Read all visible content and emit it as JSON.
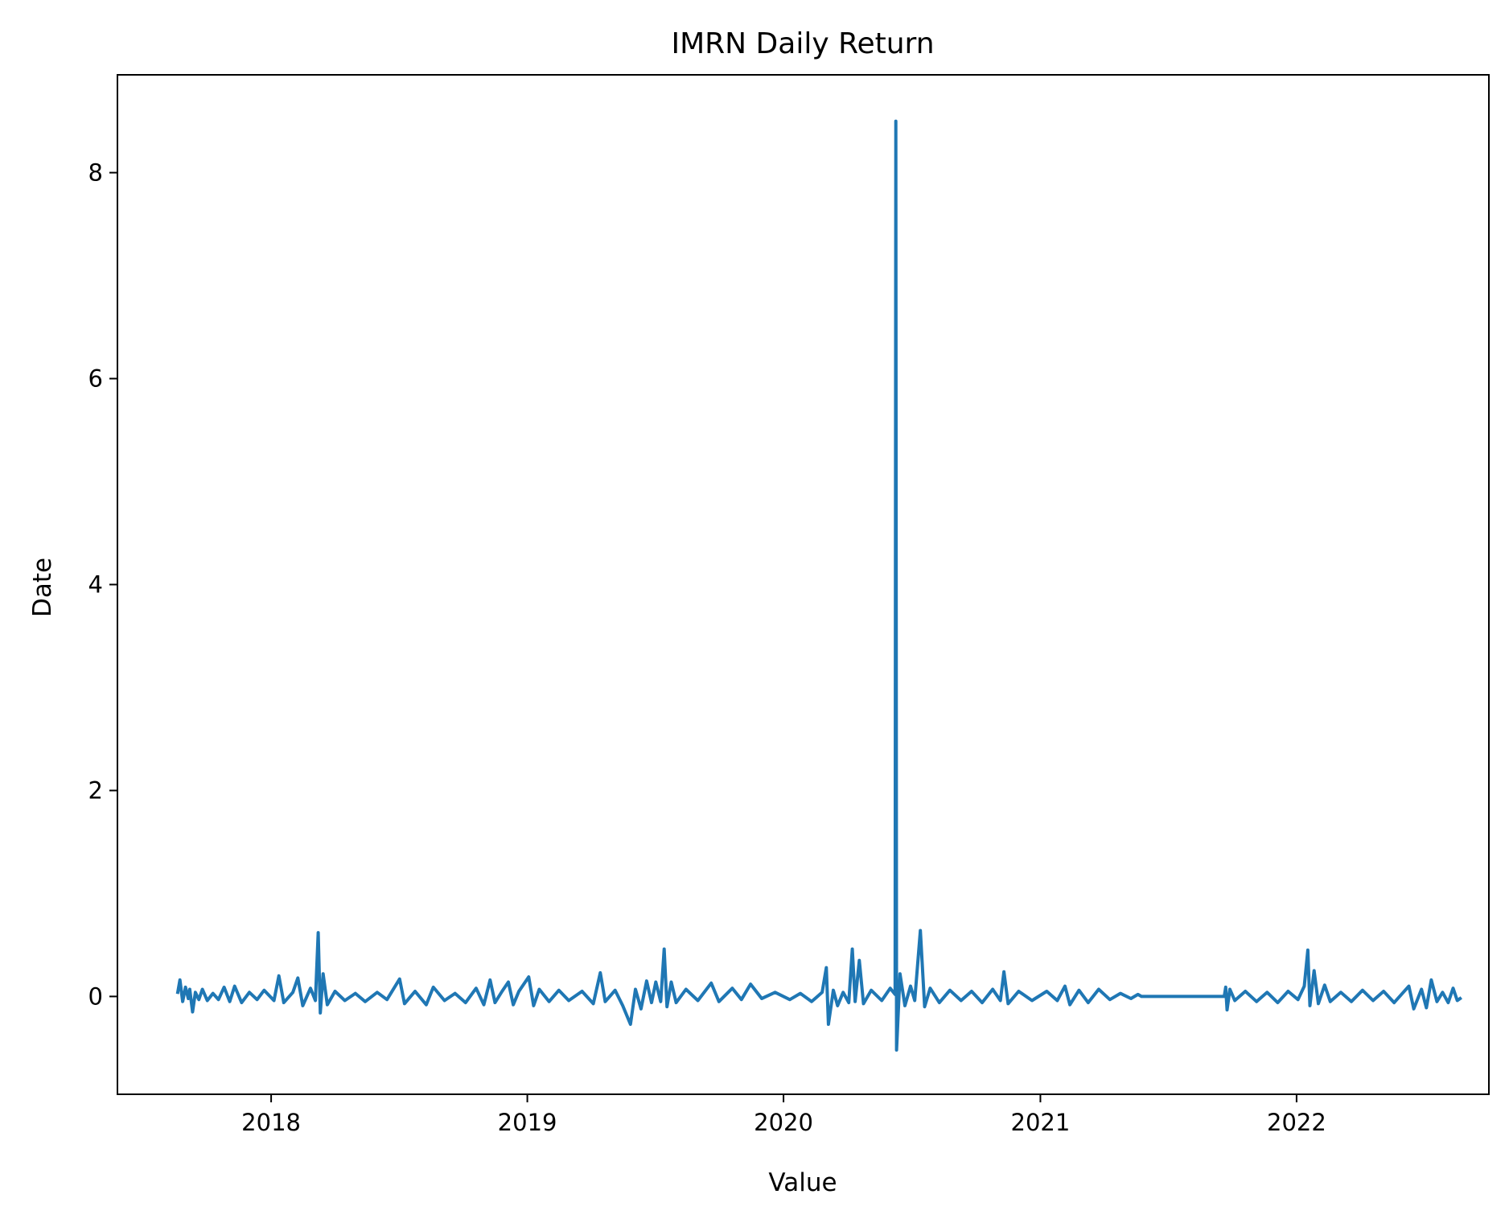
{
  "chart_data": {
    "type": "line",
    "title": "IMRN Daily Return",
    "xlabel": "Value",
    "ylabel": "Date",
    "x_ticks": [
      "2018",
      "2019",
      "2020",
      "2021",
      "2022"
    ],
    "y_ticks": [
      "0",
      "2",
      "4",
      "6",
      "8"
    ],
    "xlim": [
      "2017-05-27",
      "2022-10-02"
    ],
    "ylim": [
      -0.95,
      8.95
    ],
    "grid": false,
    "series": [
      {
        "color": "#1f77b4",
        "points": [
          [
            "2017-08-21",
            0.04
          ],
          [
            "2017-08-24",
            0.16
          ],
          [
            "2017-08-28",
            -0.05
          ],
          [
            "2017-09-01",
            0.09
          ],
          [
            "2017-09-05",
            -0.02
          ],
          [
            "2017-09-07",
            0.07
          ],
          [
            "2017-09-11",
            -0.15
          ],
          [
            "2017-09-15",
            0.04
          ],
          [
            "2017-09-20",
            -0.03
          ],
          [
            "2017-09-25",
            0.07
          ],
          [
            "2017-10-02",
            -0.04
          ],
          [
            "2017-10-10",
            0.03
          ],
          [
            "2017-10-18",
            -0.03
          ],
          [
            "2017-10-26",
            0.09
          ],
          [
            "2017-11-03",
            -0.05
          ],
          [
            "2017-11-10",
            0.1
          ],
          [
            "2017-11-20",
            -0.06
          ],
          [
            "2017-12-01",
            0.04
          ],
          [
            "2017-12-12",
            -0.03
          ],
          [
            "2017-12-22",
            0.06
          ],
          [
            "2018-01-05",
            -0.04
          ],
          [
            "2018-01-12",
            0.2
          ],
          [
            "2018-01-19",
            -0.06
          ],
          [
            "2018-02-01",
            0.04
          ],
          [
            "2018-02-08",
            0.18
          ],
          [
            "2018-02-15",
            -0.09
          ],
          [
            "2018-02-26",
            0.08
          ],
          [
            "2018-03-05",
            -0.04
          ],
          [
            "2018-03-09",
            0.62
          ],
          [
            "2018-03-12",
            -0.16
          ],
          [
            "2018-03-16",
            0.22
          ],
          [
            "2018-03-22",
            -0.08
          ],
          [
            "2018-04-02",
            0.05
          ],
          [
            "2018-04-16",
            -0.04
          ],
          [
            "2018-05-01",
            0.03
          ],
          [
            "2018-05-15",
            -0.05
          ],
          [
            "2018-06-01",
            0.04
          ],
          [
            "2018-06-15",
            -0.03
          ],
          [
            "2018-07-03",
            0.17
          ],
          [
            "2018-07-10",
            -0.07
          ],
          [
            "2018-07-25",
            0.05
          ],
          [
            "2018-08-10",
            -0.08
          ],
          [
            "2018-08-20",
            0.09
          ],
          [
            "2018-09-05",
            -0.04
          ],
          [
            "2018-09-20",
            0.03
          ],
          [
            "2018-10-05",
            -0.06
          ],
          [
            "2018-10-20",
            0.08
          ],
          [
            "2018-10-31",
            -0.08
          ],
          [
            "2018-11-09",
            0.16
          ],
          [
            "2018-11-16",
            -0.06
          ],
          [
            "2018-11-26",
            0.05
          ],
          [
            "2018-12-05",
            0.14
          ],
          [
            "2018-12-12",
            -0.08
          ],
          [
            "2018-12-20",
            0.05
          ],
          [
            "2019-01-03",
            0.19
          ],
          [
            "2019-01-10",
            -0.09
          ],
          [
            "2019-01-18",
            0.07
          ],
          [
            "2019-02-01",
            -0.05
          ],
          [
            "2019-02-15",
            0.06
          ],
          [
            "2019-03-01",
            -0.04
          ],
          [
            "2019-03-20",
            0.05
          ],
          [
            "2019-04-05",
            -0.07
          ],
          [
            "2019-04-15",
            0.23
          ],
          [
            "2019-04-22",
            -0.05
          ],
          [
            "2019-05-06",
            0.06
          ],
          [
            "2019-05-17",
            -0.09
          ],
          [
            "2019-05-28",
            -0.27
          ],
          [
            "2019-06-04",
            0.07
          ],
          [
            "2019-06-12",
            -0.12
          ],
          [
            "2019-06-20",
            0.15
          ],
          [
            "2019-06-27",
            -0.06
          ],
          [
            "2019-07-03",
            0.14
          ],
          [
            "2019-07-10",
            -0.05
          ],
          [
            "2019-07-15",
            0.46
          ],
          [
            "2019-07-19",
            -0.1
          ],
          [
            "2019-07-25",
            0.14
          ],
          [
            "2019-08-01",
            -0.06
          ],
          [
            "2019-08-15",
            0.07
          ],
          [
            "2019-09-01",
            -0.04
          ],
          [
            "2019-09-20",
            0.13
          ],
          [
            "2019-10-01",
            -0.05
          ],
          [
            "2019-10-20",
            0.08
          ],
          [
            "2019-11-02",
            -0.03
          ],
          [
            "2019-11-15",
            0.12
          ],
          [
            "2019-12-01",
            -0.02
          ],
          [
            "2019-12-20",
            0.04
          ],
          [
            "2020-01-10",
            -0.03
          ],
          [
            "2020-01-25",
            0.03
          ],
          [
            "2020-02-10",
            -0.05
          ],
          [
            "2020-02-25",
            0.04
          ],
          [
            "2020-03-02",
            0.28
          ],
          [
            "2020-03-05",
            -0.27
          ],
          [
            "2020-03-12",
            0.06
          ],
          [
            "2020-03-18",
            -0.09
          ],
          [
            "2020-03-26",
            0.04
          ],
          [
            "2020-04-03",
            -0.06
          ],
          [
            "2020-04-08",
            0.46
          ],
          [
            "2020-04-12",
            -0.05
          ],
          [
            "2020-04-18",
            0.35
          ],
          [
            "2020-04-24",
            -0.07
          ],
          [
            "2020-05-05",
            0.06
          ],
          [
            "2020-05-20",
            -0.04
          ],
          [
            "2020-06-01",
            0.08
          ],
          [
            "2020-06-08",
            0.02
          ],
          [
            "2020-06-09",
            8.5
          ],
          [
            "2020-06-10",
            -0.52
          ],
          [
            "2020-06-15",
            0.22
          ],
          [
            "2020-06-22",
            -0.09
          ],
          [
            "2020-06-30",
            0.1
          ],
          [
            "2020-07-06",
            -0.04
          ],
          [
            "2020-07-14",
            0.64
          ],
          [
            "2020-07-20",
            -0.1
          ],
          [
            "2020-07-28",
            0.08
          ],
          [
            "2020-08-10",
            -0.06
          ],
          [
            "2020-08-25",
            0.06
          ],
          [
            "2020-09-10",
            -0.04
          ],
          [
            "2020-09-25",
            0.05
          ],
          [
            "2020-10-10",
            -0.06
          ],
          [
            "2020-10-25",
            0.07
          ],
          [
            "2020-11-05",
            -0.04
          ],
          [
            "2020-11-10",
            0.24
          ],
          [
            "2020-11-16",
            -0.07
          ],
          [
            "2020-12-01",
            0.05
          ],
          [
            "2020-12-20",
            -0.04
          ],
          [
            "2021-01-10",
            0.05
          ],
          [
            "2021-01-25",
            -0.04
          ],
          [
            "2021-02-05",
            0.1
          ],
          [
            "2021-02-12",
            -0.08
          ],
          [
            "2021-02-25",
            0.06
          ],
          [
            "2021-03-10",
            -0.06
          ],
          [
            "2021-03-25",
            0.07
          ],
          [
            "2021-04-10",
            -0.03
          ],
          [
            "2021-04-25",
            0.03
          ],
          [
            "2021-05-10",
            -0.02
          ],
          [
            "2021-05-20",
            0.02
          ],
          [
            "2021-05-25",
            0.0
          ],
          [
            "2021-09-20",
            0.0
          ],
          [
            "2021-09-22",
            0.09
          ],
          [
            "2021-09-24",
            -0.13
          ],
          [
            "2021-09-28",
            0.07
          ],
          [
            "2021-10-05",
            -0.04
          ],
          [
            "2021-10-20",
            0.05
          ],
          [
            "2021-11-05",
            -0.05
          ],
          [
            "2021-11-20",
            0.04
          ],
          [
            "2021-12-05",
            -0.06
          ],
          [
            "2021-12-20",
            0.05
          ],
          [
            "2022-01-03",
            -0.03
          ],
          [
            "2022-01-12",
            0.1
          ],
          [
            "2022-01-17",
            0.45
          ],
          [
            "2022-01-20",
            -0.09
          ],
          [
            "2022-01-26",
            0.25
          ],
          [
            "2022-02-01",
            -0.07
          ],
          [
            "2022-02-10",
            0.11
          ],
          [
            "2022-02-18",
            -0.05
          ],
          [
            "2022-03-05",
            0.04
          ],
          [
            "2022-03-20",
            -0.05
          ],
          [
            "2022-04-05",
            0.06
          ],
          [
            "2022-04-20",
            -0.04
          ],
          [
            "2022-05-05",
            0.05
          ],
          [
            "2022-05-20",
            -0.06
          ],
          [
            "2022-06-10",
            0.1
          ],
          [
            "2022-06-17",
            -0.12
          ],
          [
            "2022-06-28",
            0.07
          ],
          [
            "2022-07-05",
            -0.11
          ],
          [
            "2022-07-12",
            0.16
          ],
          [
            "2022-07-20",
            -0.05
          ],
          [
            "2022-07-28",
            0.04
          ],
          [
            "2022-08-05",
            -0.06
          ],
          [
            "2022-08-12",
            0.08
          ],
          [
            "2022-08-18",
            -0.04
          ],
          [
            "2022-08-22",
            -0.02
          ]
        ]
      }
    ]
  }
}
